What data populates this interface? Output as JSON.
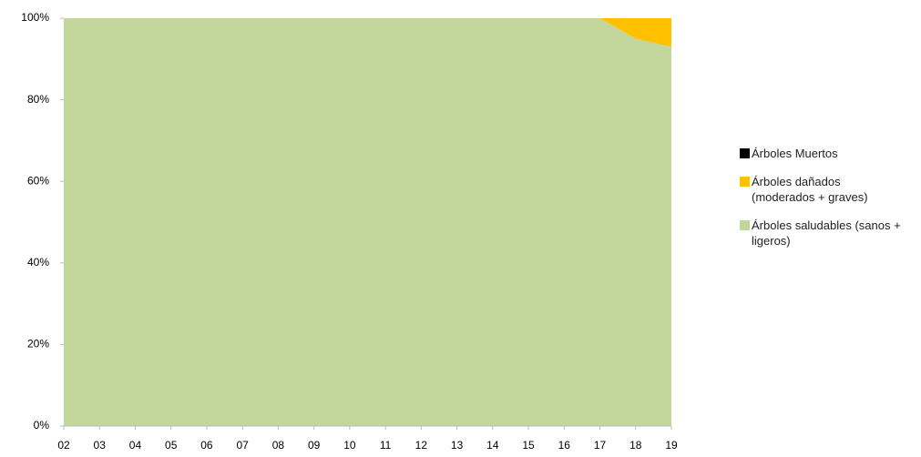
{
  "chart_data": {
    "type": "stacked_area",
    "categories": [
      "02",
      "03",
      "04",
      "05",
      "06",
      "07",
      "08",
      "09",
      "10",
      "11",
      "12",
      "13",
      "14",
      "15",
      "16",
      "17",
      "18",
      "19"
    ],
    "series": [
      {
        "name": "Árboles saludables (sanos + ligeros)",
        "color": "#c3d69b",
        "values": [
          100,
          100,
          100,
          100,
          100,
          100,
          100,
          100,
          100,
          100,
          100,
          100,
          100,
          100,
          100,
          100,
          95,
          93
        ]
      },
      {
        "name": "Árboles dañados (moderados + graves)",
        "color": "#ffc000",
        "values": [
          0,
          0,
          0,
          0,
          0,
          0,
          0,
          0,
          0,
          0,
          0,
          0,
          0,
          0,
          0,
          0,
          5,
          7
        ]
      },
      {
        "name": "Árboles Muertos",
        "color": "#000000",
        "values": [
          0,
          0,
          0,
          0,
          0,
          0,
          0,
          0,
          0,
          0,
          0,
          0,
          0,
          0,
          0,
          0,
          0,
          0
        ]
      }
    ],
    "ylim": [
      0,
      100
    ],
    "yticks": [
      {
        "value": 0,
        "label": "0%"
      },
      {
        "value": 20,
        "label": "20%"
      },
      {
        "value": 40,
        "label": "40%"
      },
      {
        "value": 60,
        "label": "60%"
      },
      {
        "value": 80,
        "label": "80%"
      },
      {
        "value": 100,
        "label": "100%"
      }
    ],
    "legend": "right"
  }
}
